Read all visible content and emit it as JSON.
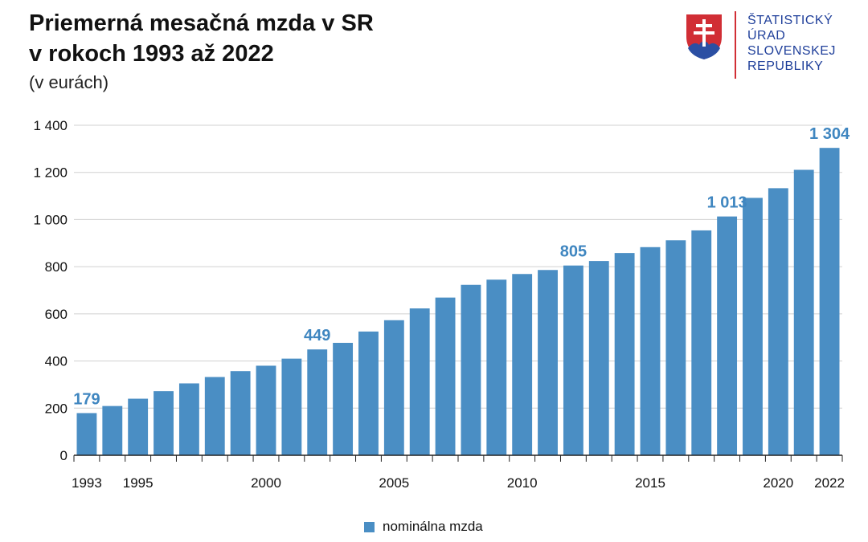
{
  "header": {
    "title_line1": "Priemerná mesačná mzda v SR",
    "title_line2": "v rokoch 1993 až 2022",
    "subtitle": "(v eurách)"
  },
  "logo": {
    "lines": [
      "ŠTATISTICKÝ",
      "ÚRAD",
      "SLOVENSKEJ",
      "REPUBLIKY"
    ],
    "text_color": "#1f3f9a",
    "accent_color": "#d12e35"
  },
  "chart_data": {
    "type": "bar",
    "title": "Priemerná mesačná mzda v SR v rokoch 1993 až 2022",
    "subtitle": "(v eurách)",
    "categories": [
      1993,
      1994,
      1995,
      1996,
      1997,
      1998,
      1999,
      2000,
      2001,
      2002,
      2003,
      2004,
      2005,
      2006,
      2007,
      2008,
      2009,
      2010,
      2011,
      2012,
      2013,
      2014,
      2015,
      2016,
      2017,
      2018,
      2019,
      2020,
      2021,
      2022
    ],
    "x_tick_labels": [
      "1993",
      "1995",
      "2000",
      "2005",
      "2010",
      "2015",
      "2020",
      "2022"
    ],
    "series": [
      {
        "name": "nominálna mzda",
        "color": "#4a8ec4",
        "values": [
          179,
          209,
          240,
          272,
          305,
          332,
          357,
          380,
          410,
          449,
          477,
          525,
          573,
          623,
          669,
          723,
          745,
          769,
          786,
          805,
          824,
          858,
          883,
          912,
          954,
          1013,
          1092,
          1133,
          1211,
          1304
        ]
      }
    ],
    "data_labels": [
      {
        "year": 1993,
        "text": "179"
      },
      {
        "year": 2002,
        "text": "449"
      },
      {
        "year": 2012,
        "text": "805"
      },
      {
        "year": 2018,
        "text": "1 013"
      },
      {
        "year": 2022,
        "text": "1 304"
      }
    ],
    "y_ticks": [
      {
        "value": 0,
        "label": "0"
      },
      {
        "value": 200,
        "label": "200"
      },
      {
        "value": 400,
        "label": "400"
      },
      {
        "value": 600,
        "label": "600"
      },
      {
        "value": 800,
        "label": "800"
      },
      {
        "value": 1000,
        "label": "1 000"
      },
      {
        "value": 1200,
        "label": "1 200"
      },
      {
        "value": 1400,
        "label": "1 400"
      }
    ],
    "ylim": [
      0,
      1400
    ],
    "grid": true,
    "legend_position": "bottom-center"
  }
}
